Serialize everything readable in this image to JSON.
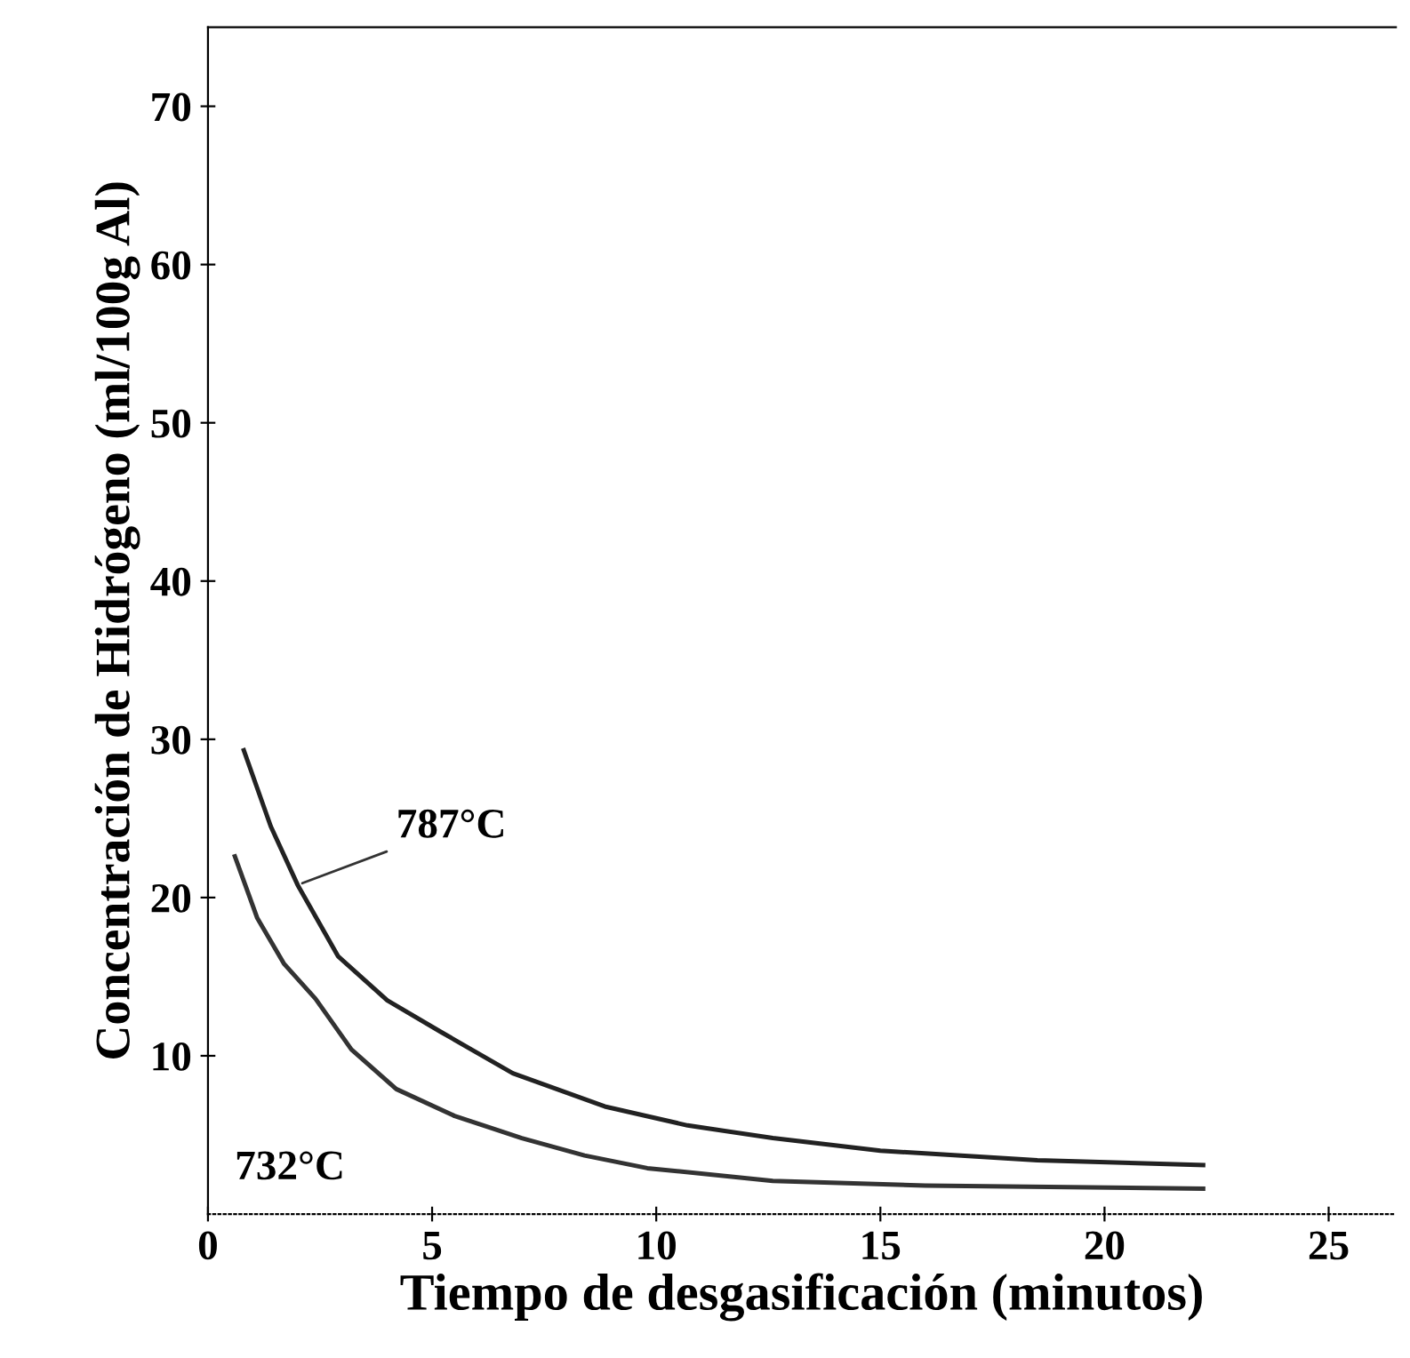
{
  "chart_data": {
    "type": "line",
    "xlabel": "Tiempo de desgasificación (minutos)",
    "ylabel": "Concentración de Hidrógeno (ml/100g Al)",
    "xlim": [
      0,
      26.5
    ],
    "ylim": [
      0,
      75
    ],
    "xticks": [
      0,
      5,
      10,
      15,
      20,
      25
    ],
    "yticks": [
      10,
      20,
      30,
      40,
      50,
      60,
      70
    ],
    "grid": false,
    "legend": false,
    "marker": "none",
    "line_style": "solid",
    "series": [
      {
        "name": "787°C",
        "color": "#222222",
        "x": [
          0.8,
          1.4,
          2.0,
          2.9,
          4.0,
          5.2,
          6.8,
          8.85,
          10.7,
          12.6,
          15,
          18.5,
          22.2
        ],
        "values": [
          29.3,
          24.5,
          20.8,
          16.3,
          13.5,
          11.5,
          8.9,
          6.8,
          5.6,
          4.8,
          4.0,
          3.4,
          3.1
        ]
      },
      {
        "name": "732°C",
        "color": "#333333",
        "x": [
          0.6,
          1.1,
          1.7,
          2.4,
          3.2,
          4.2,
          5.5,
          7.0,
          8.4,
          9.8,
          12.6,
          16,
          22.2
        ],
        "values": [
          22.6,
          18.7,
          15.8,
          13.6,
          10.4,
          7.9,
          6.2,
          4.8,
          3.7,
          2.9,
          2.1,
          1.8,
          1.6
        ]
      }
    ]
  }
}
